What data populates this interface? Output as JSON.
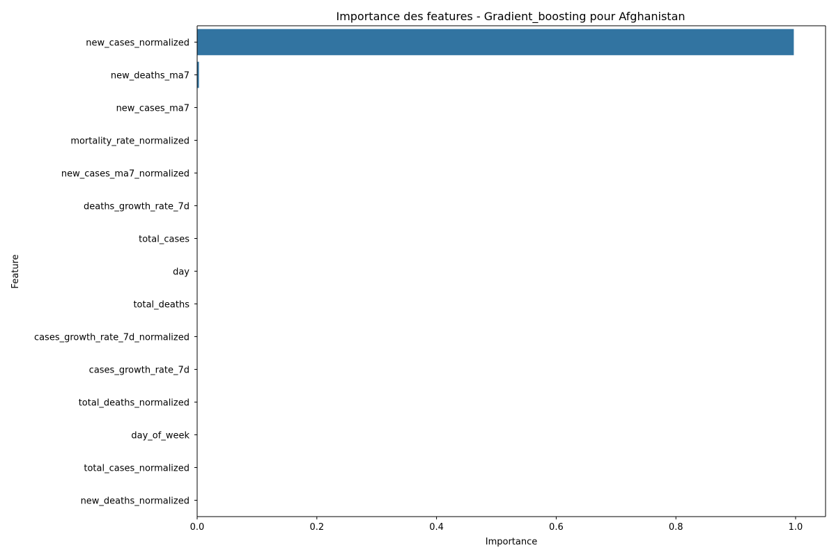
{
  "chart_data": {
    "type": "bar",
    "orientation": "horizontal",
    "title": "Importance des features - Gradient_boosting pour Afghanistan",
    "xlabel": "Importance",
    "ylabel": "Feature",
    "xlim": [
      0,
      1.0
    ],
    "xticks": [
      "0.0",
      "0.2",
      "0.4",
      "0.6",
      "0.8",
      "1.0"
    ],
    "categories": [
      "new_cases_normalized",
      "new_deaths_ma7",
      "new_cases_ma7",
      "mortality_rate_normalized",
      "new_cases_ma7_normalized",
      "deaths_growth_rate_7d",
      "total_cases",
      "day",
      "total_deaths",
      "cases_growth_rate_7d_normalized",
      "cases_growth_rate_7d",
      "total_deaths_normalized",
      "day_of_week",
      "total_cases_normalized",
      "new_deaths_normalized"
    ],
    "values": [
      0.997,
      0.003,
      0.0,
      0.0,
      0.0,
      0.0,
      0.0,
      0.0,
      0.0,
      0.0,
      0.0,
      0.0,
      0.0,
      0.0,
      0.0
    ],
    "bar_color": "#3274a1",
    "grid": false
  }
}
